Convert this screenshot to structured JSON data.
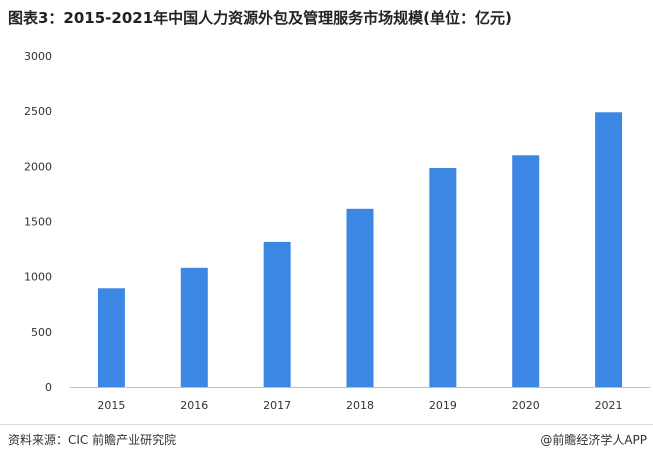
{
  "title": "图表3：2015-2021年中国人力资源外包及管理服务市场规模(单位：亿元)",
  "source": "资料来源：CIC 前瞻产业研究院",
  "brand": "@前瞻经济学人APP",
  "colors": {
    "bar": "#3d87e4",
    "axis": "#bfbfbf",
    "text": "#333333"
  },
  "chart_data": {
    "type": "bar",
    "title": "图表3：2015-2021年中国人力资源外包及管理服务市场规模(单位：亿元)",
    "xlabel": "",
    "ylabel": "",
    "categories": [
      "2015",
      "2016",
      "2017",
      "2018",
      "2019",
      "2020",
      "2021"
    ],
    "values": [
      895,
      1080,
      1315,
      1615,
      1985,
      2100,
      2490
    ],
    "ylim": [
      0,
      3000
    ],
    "yticks": [
      0,
      500,
      1000,
      1500,
      2000,
      2500,
      3000
    ],
    "grid": false,
    "legend": "none"
  }
}
